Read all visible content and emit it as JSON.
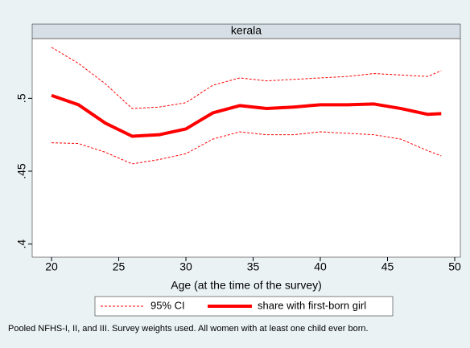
{
  "chart_data": {
    "type": "line",
    "title": "kerala",
    "x_label": "Age (at the time of the survey)",
    "footnote": "Pooled NFHS-I, II, and III. Survey weights used. All women with at least one child ever born.",
    "x": [
      20,
      22,
      24,
      26,
      28,
      30,
      32,
      34,
      36,
      38,
      40,
      42,
      44,
      46,
      48,
      49
    ],
    "series": [
      {
        "name": "95% CI",
        "color": "#ff0000",
        "dashed": true,
        "upper": [
          0.535,
          0.524,
          0.51,
          0.493,
          0.494,
          0.497,
          0.509,
          0.514,
          0.512,
          0.513,
          0.514,
          0.515,
          0.517,
          0.516,
          0.515,
          0.519
        ],
        "lower": [
          0.4695,
          0.469,
          0.463,
          0.455,
          0.458,
          0.462,
          0.472,
          0.477,
          0.475,
          0.475,
          0.477,
          0.476,
          0.475,
          0.472,
          0.464,
          0.4605
        ]
      },
      {
        "name": "share with first-born girl",
        "color": "#ff0000",
        "dashed": false,
        "values": [
          0.502,
          0.4956,
          0.483,
          0.474,
          0.475,
          0.479,
          0.49,
          0.495,
          0.493,
          0.494,
          0.4956,
          0.4956,
          0.4961,
          0.493,
          0.489,
          0.4895
        ]
      }
    ],
    "xlim": [
      18.56,
      50.42
    ],
    "xticks": [
      20,
      25,
      30,
      35,
      40,
      45,
      50
    ],
    "ylim": [
      0.391,
      0.541
    ],
    "yticks": [
      {
        "value": 0.4,
        "label": ".4"
      },
      {
        "value": 0.45,
        "label": ".45"
      },
      {
        "value": 0.5,
        "label": ".5"
      }
    ]
  }
}
